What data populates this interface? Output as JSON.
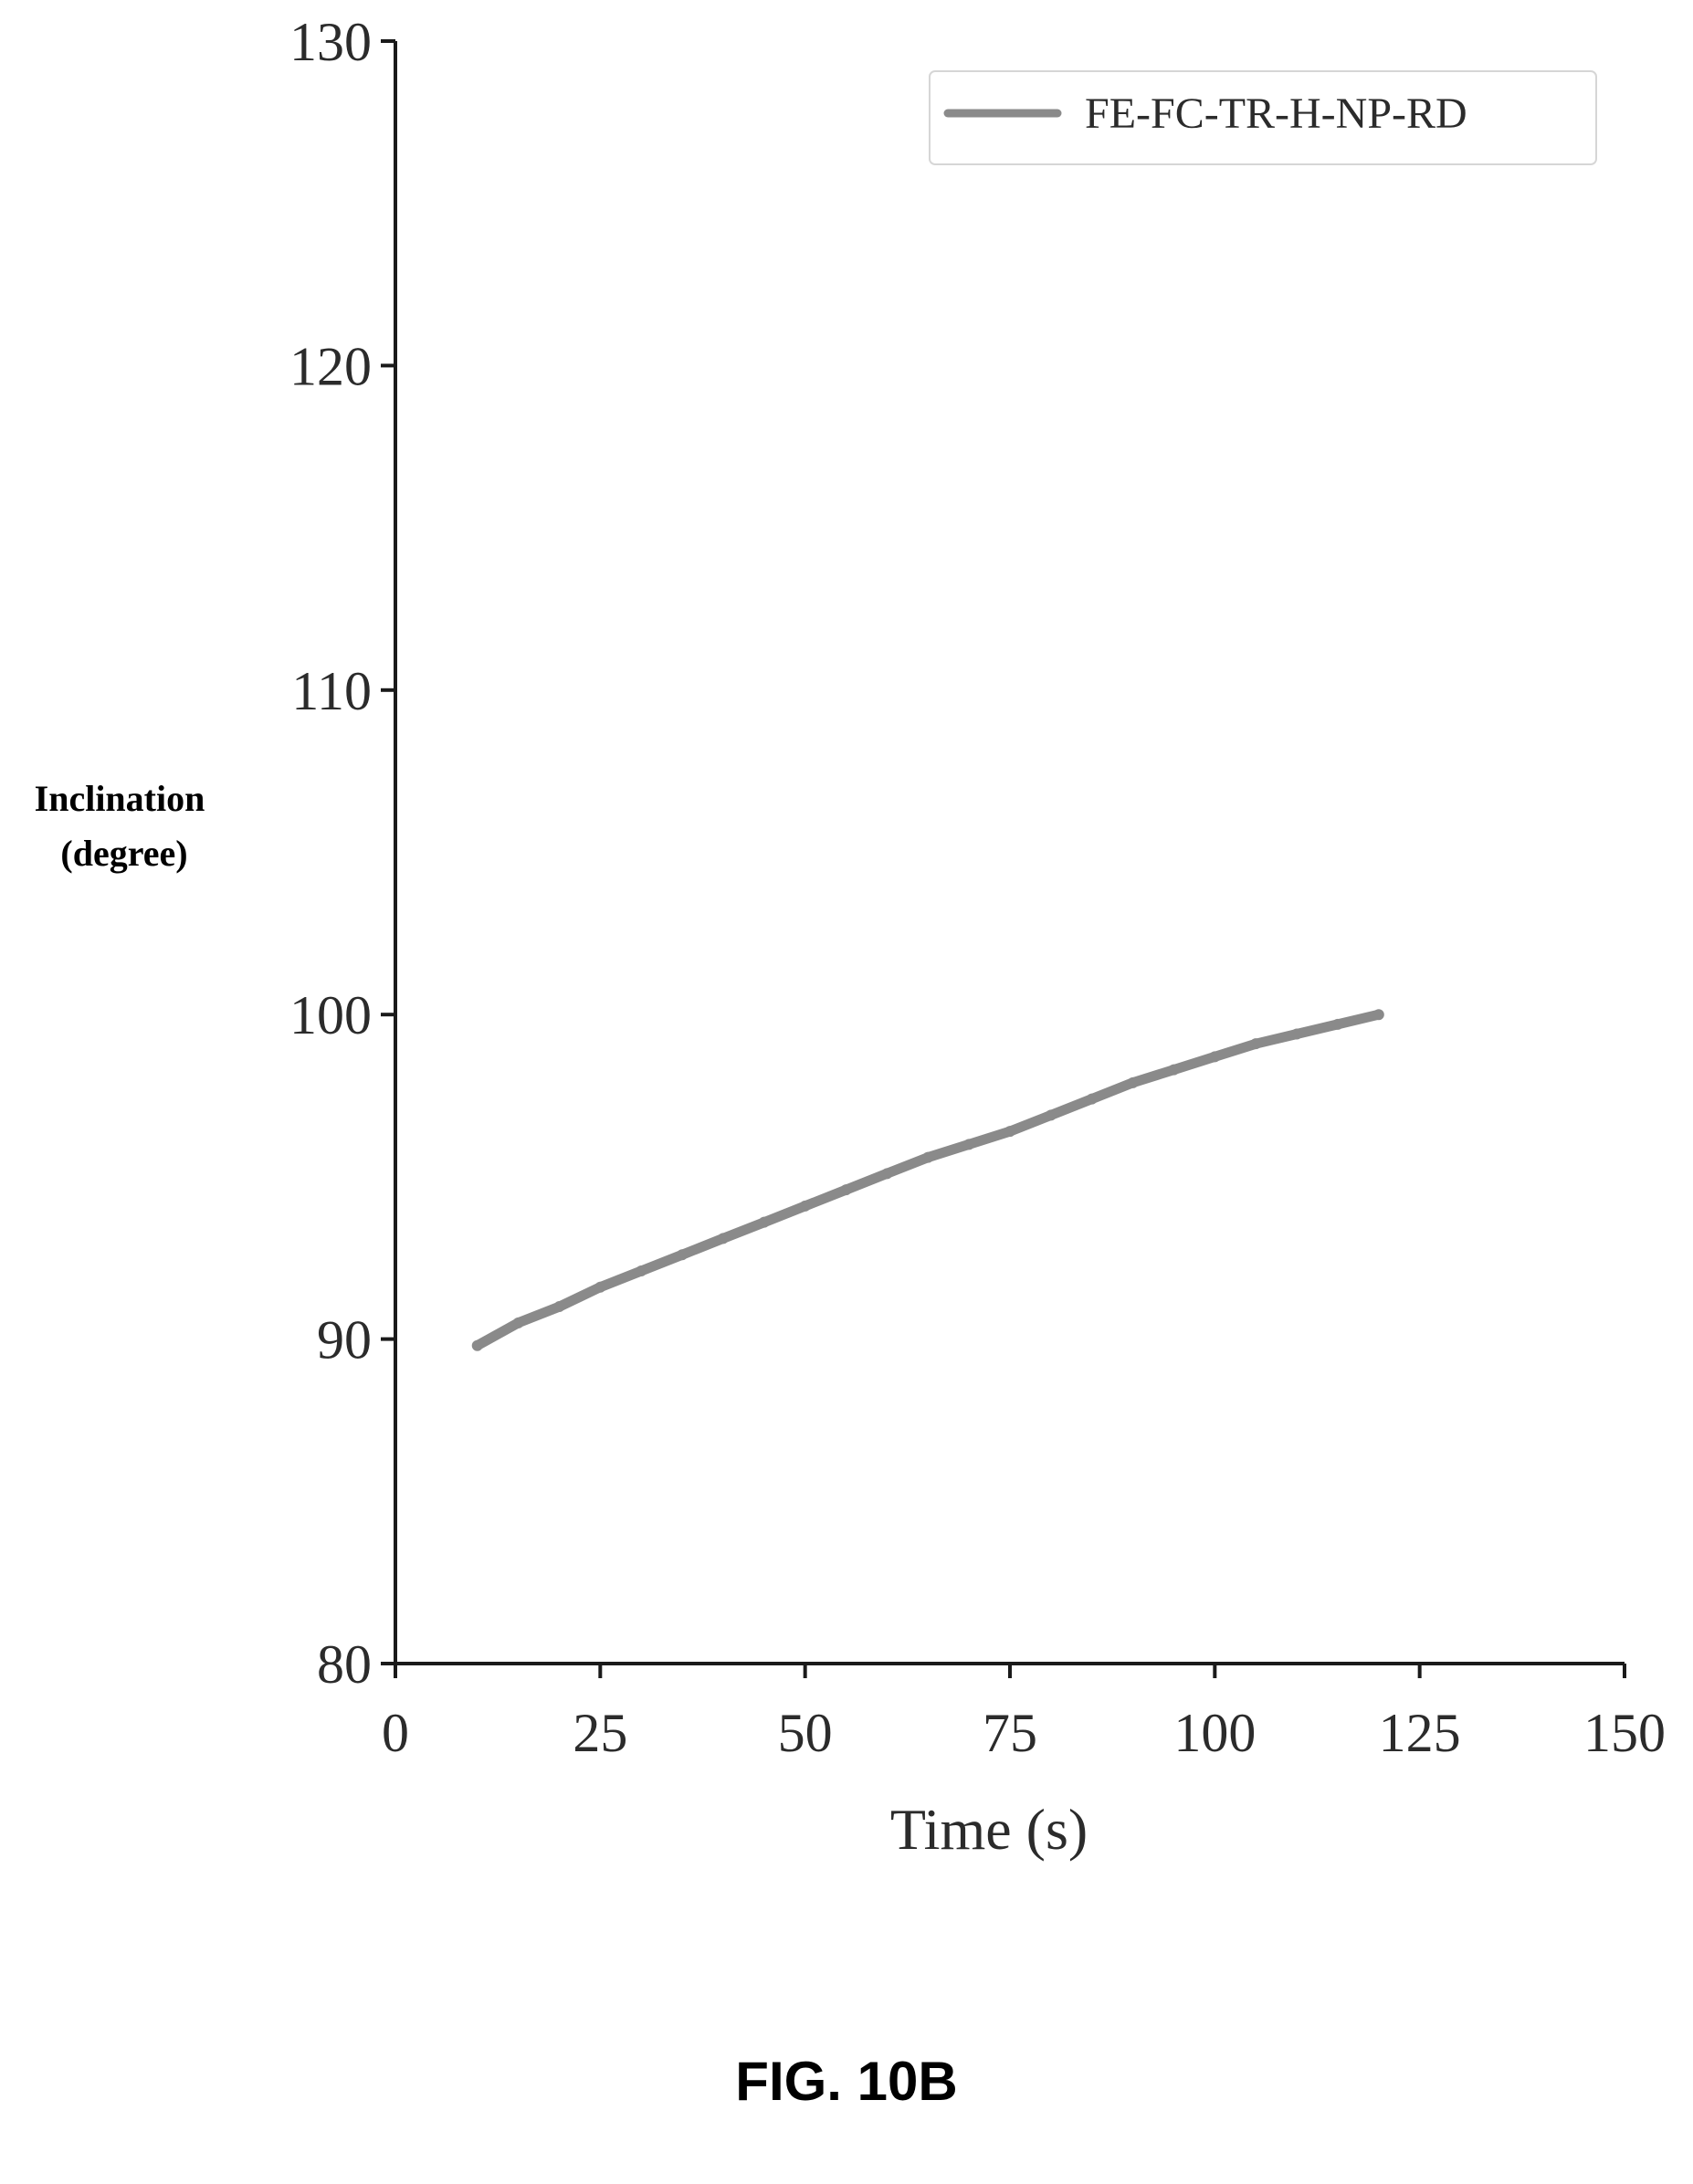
{
  "figure": {
    "caption": "FIG. 10B"
  },
  "chart_data": {
    "type": "line",
    "title": "",
    "xlabel": "Time (s)",
    "ylabel": [
      "Inclination",
      "(degree)"
    ],
    "xlim": [
      0,
      150
    ],
    "ylim": [
      80,
      130
    ],
    "xticks": [
      0,
      25,
      50,
      75,
      100,
      125,
      150
    ],
    "yticks": [
      80,
      90,
      100,
      110,
      120,
      130
    ],
    "grid": false,
    "legend_position": "top-right",
    "series": [
      {
        "name": "FE-FC-TR-H-NP-RD",
        "color": "#8a8a8a",
        "x": [
          10,
          15,
          20,
          25,
          30,
          35,
          40,
          45,
          50,
          55,
          60,
          65,
          70,
          75,
          80,
          85,
          90,
          95,
          100,
          105,
          110,
          115,
          120
        ],
        "y": [
          89.8,
          90.5,
          91.0,
          91.6,
          92.1,
          92.6,
          93.1,
          93.6,
          94.1,
          94.6,
          95.1,
          95.6,
          96.0,
          96.4,
          96.9,
          97.4,
          97.9,
          98.3,
          98.7,
          99.1,
          99.4,
          99.7,
          100.0
        ]
      }
    ]
  }
}
